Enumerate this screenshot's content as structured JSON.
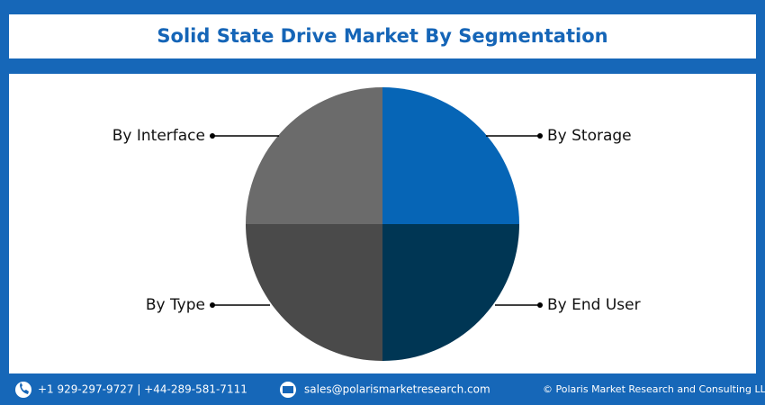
{
  "header": {
    "title": "Solid State Drive Market By Segmentation"
  },
  "segments": [
    {
      "label": "By Storage"
    },
    {
      "label": "By End User"
    },
    {
      "label": "By Type"
    },
    {
      "label": "By Interface"
    }
  ],
  "footer": {
    "phone": "+1 929-297-9727 | +44-289-581-7111",
    "email": "sales@polarismarketresearch.com",
    "copyright": "© Polaris Market Research and Consulting LLP"
  }
}
